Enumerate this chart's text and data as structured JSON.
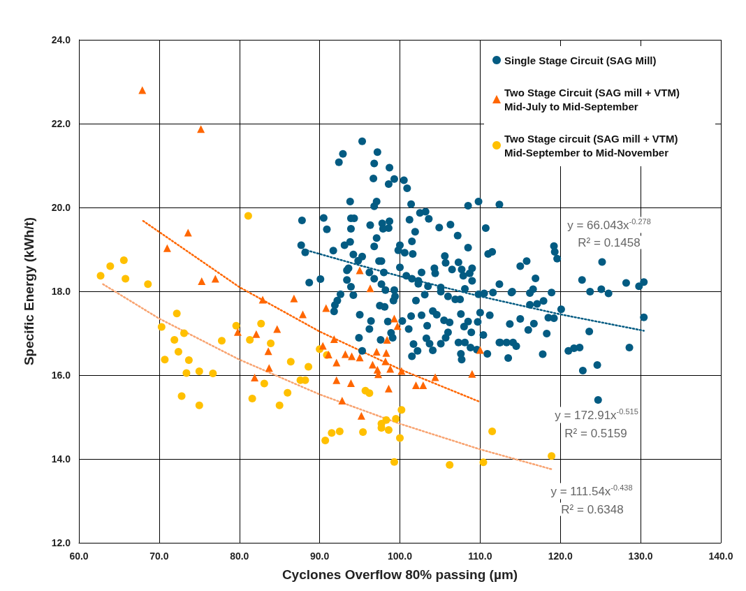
{
  "chart_data": {
    "type": "scatter",
    "xlabel": "Cyclones Overflow 80% passing (µm)",
    "ylabel": "Specific Energy (kWh/t)",
    "xlim": [
      60,
      140
    ],
    "xticks": [
      {
        "value": 60,
        "label": "60.0"
      },
      {
        "value": 70,
        "label": "70.0"
      },
      {
        "value": 80,
        "label": "80.0"
      },
      {
        "value": 90,
        "label": "90.0"
      },
      {
        "value": 100,
        "label": "100.0"
      },
      {
        "value": 110,
        "label": "110.0"
      },
      {
        "value": 120,
        "label": "120.0"
      },
      {
        "value": 130,
        "label": "130.0"
      },
      {
        "value": 140,
        "label": "140.0"
      }
    ],
    "ylim": [
      12,
      24
    ],
    "yticks": [
      {
        "value": 12,
        "label": "12.0"
      },
      {
        "value": 14,
        "label": "14.0"
      },
      {
        "value": 16,
        "label": "16.0"
      },
      {
        "value": 18,
        "label": "18.0"
      },
      {
        "value": 20,
        "label": "20.0"
      },
      {
        "value": 22,
        "label": "22.0"
      },
      {
        "value": 24,
        "label": "24.0"
      }
    ],
    "grid": true,
    "legend": "top right",
    "series": [
      {
        "name": "Single Stage Circuit (SAG Mill)",
        "color": "#035b82",
        "marker": "circle",
        "x": [
          95.3,
          92.9,
          92.4,
          97.2,
          96.8,
          98.7,
          96.7,
          99.3,
          98.6,
          100.5,
          100.9,
          93.8,
          97.1,
          96.8,
          101.4,
          108.5,
          109.8,
          112.4,
          87.8,
          90.5,
          90.9,
          93.9,
          94.3,
          93.9,
          96.3,
          97.8,
          98.7,
          98.6,
          97.9,
          101.2,
          102.5,
          103.2,
          103.6,
          104.9,
          106.3,
          107.2,
          110.7,
          101.9,
          101.5,
          97.1,
          87.7,
          88.2,
          91.7,
          93.8,
          93.1,
          96.8,
          100.0,
          99.8,
          100.6,
          101.6,
          94.2,
          95.3,
          94.8,
          97.4,
          97.7,
          105.6,
          105.7,
          107.3,
          108.5,
          111.0,
          111.5,
          93.6,
          93.4,
          96.2,
          98.0,
          100.0,
          96.8,
          100.8,
          101.5,
          102.3,
          102.7,
          104.3,
          104.4,
          106.5,
          107.7,
          109.0,
          107.9,
          108.7,
          109.0,
          88.7,
          90.1,
          93.4,
          93.9,
          97.7,
          98.2,
          99.3,
          102.3,
          103.5,
          105.1,
          105.1,
          108.1,
          106.0,
          106.9,
          107.5,
          109.8,
          110.5,
          112.4,
          102.0,
          103.1,
          99.4,
          99.2,
          92.6,
          92.2,
          94.2,
          91.9,
          91.8,
          97.5,
          98.1,
          95.0,
          96.4,
          96.2,
          98.5,
          100.3,
          101.1,
          98.9,
          99.1,
          97.6,
          94.9,
          95.3,
          101.4,
          102.7,
          103.4,
          104.1,
          104.6,
          105.5,
          106.2,
          106.0,
          105.7,
          103.3,
          103.7,
          104.1,
          105.1,
          101.7,
          102.2,
          101.5,
          107.6,
          108.5,
          108.0,
          108.9,
          107.3,
          108.1,
          107.6,
          107.7,
          108.8,
          109.7,
          110.0,
          111.2,
          110.4,
          109.6,
          110.9,
          112.4,
          115.0,
          115.8,
          119.2,
          119.3,
          119.6,
          116.9,
          111.6,
          113.9,
          114.0,
          116.2,
          116.6,
          118.9,
          122.7,
          123.7,
          125.1,
          126.0,
          125.2,
          128.2,
          129.8,
          130.4,
          130.4,
          116.2,
          117.1,
          117.9,
          115.0,
          113.7,
          116.7,
          118.5,
          119.2,
          120.1,
          118.3,
          116.0,
          112.5,
          113.3,
          114.1,
          114.5,
          113.5,
          117.8,
          121.0,
          121.7,
          122.4,
          123.6,
          128.6,
          124.6,
          122.8,
          124.7
        ],
        "values": [
          21.58,
          21.28,
          21.08,
          21.32,
          21.05,
          20.95,
          20.69,
          20.68,
          20.56,
          20.65,
          20.46,
          20.14,
          20.14,
          20.03,
          20.08,
          20.04,
          20.14,
          20.07,
          19.69,
          19.75,
          19.48,
          19.74,
          19.74,
          19.49,
          19.58,
          19.62,
          19.67,
          19.51,
          19.49,
          19.71,
          19.87,
          19.9,
          19.73,
          19.52,
          19.59,
          19.33,
          19.51,
          19.42,
          19.19,
          19.27,
          19.1,
          18.93,
          18.97,
          19.18,
          19.1,
          19.07,
          19.1,
          18.98,
          18.92,
          18.89,
          18.88,
          18.83,
          18.73,
          18.72,
          18.72,
          18.84,
          18.68,
          18.69,
          19.04,
          18.89,
          18.94,
          18.55,
          18.5,
          18.45,
          18.45,
          18.57,
          18.3,
          18.37,
          18.3,
          18.25,
          18.45,
          18.55,
          18.43,
          18.52,
          18.52,
          18.55,
          18.37,
          18.43,
          18.25,
          18.21,
          18.29,
          18.27,
          18.11,
          18.17,
          18.03,
          18.03,
          18.18,
          18.12,
          18.09,
          17.99,
          18.06,
          17.88,
          17.81,
          17.81,
          17.93,
          17.95,
          18.17,
          17.78,
          17.92,
          17.88,
          17.78,
          17.93,
          17.78,
          17.91,
          17.67,
          17.52,
          17.66,
          17.63,
          17.44,
          17.29,
          17.1,
          17.28,
          17.29,
          17.1,
          17.01,
          16.89,
          16.84,
          16.89,
          16.58,
          17.41,
          17.43,
          17.18,
          17.53,
          17.44,
          17.31,
          17.26,
          17.02,
          16.89,
          16.88,
          16.75,
          16.59,
          16.75,
          16.74,
          16.58,
          16.45,
          17.46,
          17.28,
          17.16,
          17.02,
          16.78,
          16.78,
          16.51,
          16.37,
          16.66,
          17.27,
          17.49,
          17.43,
          16.96,
          16.61,
          16.51,
          16.78,
          18.6,
          18.72,
          19.08,
          18.94,
          18.78,
          18.31,
          17.97,
          17.97,
          17.99,
          17.96,
          18.05,
          17.97,
          18.27,
          17.99,
          18.05,
          17.95,
          18.7,
          18.2,
          18.12,
          18.22,
          17.38,
          17.68,
          17.7,
          17.77,
          17.34,
          17.22,
          17.23,
          17.37,
          17.36,
          17.57,
          16.99,
          17.08,
          16.78,
          16.78,
          16.78,
          16.69,
          16.41,
          16.5,
          16.58,
          16.64,
          16.66,
          17.04,
          16.66,
          16.24,
          16.11,
          15.41
        ]
      },
      {
        "name": "Two Stage Circuit (SAG mill + VTM) Mid-July to Mid-September",
        "color": "#ff6600",
        "marker": "triangle",
        "x": [
          67.9,
          75.2,
          73.6,
          71.0,
          75.3,
          77.0,
          82.9,
          86.8,
          87.9,
          84.7,
          82.1,
          79.8,
          83.6,
          83.7,
          81.9,
          90.8,
          95.0,
          96.3,
          99.3,
          99.7,
          91.8,
          90.4,
          91.1,
          93.2,
          94.0,
          95.0,
          97.1,
          98.3,
          98.4,
          96.6,
          97.2,
          97.3,
          98.2,
          98.8,
          100.2,
          92.1,
          92.1,
          93.9,
          98.6,
          102.0,
          102.9,
          104.4,
          109.0,
          110.0,
          92.8,
          95.2
        ],
        "values": [
          22.8,
          21.87,
          19.4,
          19.03,
          18.24,
          18.3,
          17.8,
          17.83,
          17.45,
          17.1,
          16.98,
          17.03,
          16.57,
          16.17,
          15.94,
          17.6,
          18.5,
          18.07,
          17.35,
          17.17,
          16.86,
          16.7,
          16.49,
          16.5,
          16.45,
          16.42,
          16.56,
          16.53,
          16.84,
          16.25,
          16.13,
          16.02,
          16.33,
          16.15,
          16.1,
          16.3,
          15.88,
          15.81,
          15.68,
          15.76,
          15.76,
          15.95,
          16.03,
          16.6,
          15.39,
          15.03
        ]
      },
      {
        "name": "Two Stage circuit (SAG mill + VTM) Mid-September to Mid-November",
        "color": "#ffc000",
        "marker": "circle",
        "x": [
          81.1,
          65.6,
          63.9,
          62.7,
          65.8,
          68.6,
          72.2,
          70.3,
          73.1,
          71.9,
          77.8,
          72.4,
          73.7,
          70.7,
          73.4,
          75.0,
          76.7,
          72.8,
          75.0,
          79.6,
          82.7,
          81.3,
          83.9,
          86.4,
          87.6,
          88.2,
          83.1,
          86.0,
          81.6,
          85.0,
          88.6,
          90.0,
          90.9,
          95.7,
          96.2,
          100.2,
          99.5,
          98.3,
          97.7,
          97.7,
          98.6,
          100.0,
          92.5,
          91.5,
          90.7,
          95.4,
          111.5,
          99.3,
          106.2,
          110.4,
          118.9
        ],
        "values": [
          19.8,
          18.74,
          18.6,
          18.37,
          18.3,
          18.17,
          17.47,
          17.15,
          17.0,
          16.84,
          16.82,
          16.56,
          16.36,
          16.37,
          16.05,
          16.09,
          16.04,
          15.5,
          15.28,
          17.18,
          17.23,
          16.84,
          16.76,
          16.32,
          15.88,
          15.88,
          15.8,
          15.58,
          15.44,
          15.28,
          16.2,
          16.62,
          16.48,
          15.63,
          15.57,
          15.17,
          14.96,
          14.93,
          14.84,
          14.74,
          14.69,
          14.5,
          14.66,
          14.62,
          14.44,
          14.64,
          14.66,
          13.93,
          13.86,
          13.92,
          14.07
        ]
      },
      {
        "type": "line",
        "color": "#035b82",
        "marker": "none",
        "line_style": "dotted",
        "x": [
          88,
          95,
          100,
          110,
          120,
          130.4
        ],
        "values": [
          19.0,
          18.62,
          18.36,
          17.88,
          17.45,
          17.06
        ]
      },
      {
        "type": "line",
        "color": "#ff6600",
        "marker": "none",
        "line_style": "dotted",
        "x": [
          68,
          80,
          90,
          100,
          110
        ],
        "values": [
          19.68,
          18.1,
          17.04,
          16.14,
          15.36
        ]
      },
      {
        "type": "line",
        "color": "#f8a370",
        "marker": "none",
        "line_style": "dotted",
        "x": [
          63,
          70,
          80,
          90,
          100,
          110,
          119
        ],
        "values": [
          18.17,
          17.35,
          16.37,
          15.54,
          14.84,
          14.23,
          13.75
        ]
      }
    ],
    "annotations": [
      "y = 66.043x$^{-0.278}$",
      "R² = 0.1458",
      "y = 172.91x$^{-0.515}$",
      "R² = 0.5159",
      "y = 111.54x$^{-0.438}$",
      "R² = 0.6348"
    ]
  }
}
